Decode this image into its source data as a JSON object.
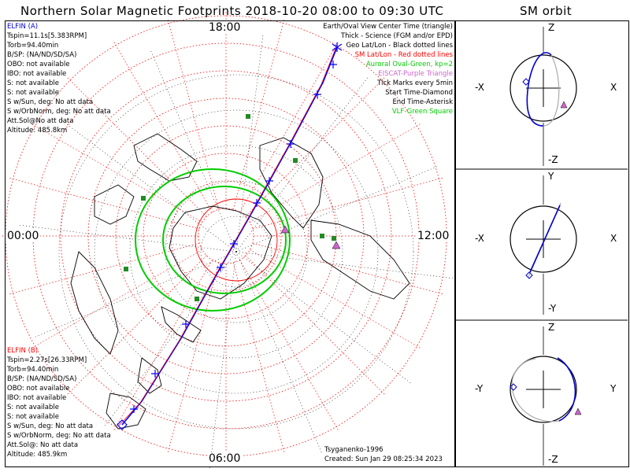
{
  "title": "Northern Solar Magnetic Footprints 2018-10-20 08:00 to 09:30 UTC",
  "orbit_title": "SM orbit",
  "clock_labels": {
    "top": "18:00",
    "left": "00:00",
    "right": "12:00",
    "bottom": "06:00"
  },
  "legend": [
    {
      "text": "Earth/Oval View Center Time (triangle)",
      "color": "#000000"
    },
    {
      "text": "Thick - Science (FGM and/or EPD)",
      "color": "#000000"
    },
    {
      "text": "Geo Lat/Lon - Black dotted lines",
      "color": "#000000"
    },
    {
      "text": "SM Lat/Lon - Red dotted lines",
      "color": "#ff0000"
    },
    {
      "text": "Auroral Oval-Green, kp=2",
      "color": "#00cc00"
    },
    {
      "text": "EISCAT-Purple Triangle",
      "color": "#cc66cc"
    },
    {
      "text": "Tick Marks every 5min",
      "color": "#000000"
    },
    {
      "text": "Start Time-Diamond",
      "color": "#000000"
    },
    {
      "text": "End Time-Asterisk",
      "color": "#000000"
    },
    {
      "text": "VLF-Green Square",
      "color": "#00cc00"
    }
  ],
  "elfin_a": {
    "name": "ELFIN (A)",
    "color": "#0000cc",
    "lines": [
      "Tspin=11.1s[5.383RPM]",
      "Torb=94.40min",
      "B/SP: (NA/ND/SD/SA)",
      "OBO: not available",
      "IBO: not available",
      "S: not available",
      "S: not available",
      "S w/Sun, deg: No att data",
      "S w/OrbNorm, deg: No att data",
      "Att.Sol@No att data",
      "Altitude: 485.8km"
    ]
  },
  "elfin_b": {
    "name": "ELFIN (B)",
    "color": "#ff0000",
    "lines": [
      "Tspin=2.27s[26.33RPM]",
      "Torb=94.40min",
      "B/SP: (NA/ND/SD/SA)",
      "OBO: not available",
      "IBO: not available",
      "S: not available",
      "S: not available",
      "S w/Sun, deg: No att data",
      "S w/OrbNorm, deg: No att data",
      "Att.Sol@: No att data",
      "Altitude: 485.9km"
    ]
  },
  "credit": "Tsyganenko-1996",
  "created": "Created: Sun Jan 29 08:25:34 2023",
  "orbit_panels": [
    {
      "top": "Z",
      "bottom": "-Z",
      "left": "-X",
      "right": "X"
    },
    {
      "top": "Y",
      "bottom": "-Y",
      "left": "-X",
      "right": "X"
    },
    {
      "top": "Z",
      "bottom": "-Z",
      "left": "-Y",
      "right": "Y"
    }
  ],
  "colors": {
    "track": "#0000ff",
    "sm_grid": "#ff0000",
    "geo_grid": "#000000",
    "oval": "#00cc00",
    "vlf": "#228b22",
    "eiscat": "#cc66cc",
    "orbit": "#0000cc"
  },
  "chart_data": {
    "type": "polar-map",
    "title": "Northern Solar Magnetic Footprints 2018-10-20 08:00 to 09:30 UTC",
    "mlt_labels": [
      "18:00",
      "00:00",
      "12:00",
      "06:00"
    ],
    "series": [
      {
        "name": "ELFIN (A)"
      },
      {
        "name": "ELFIN (B)"
      }
    ]
  }
}
